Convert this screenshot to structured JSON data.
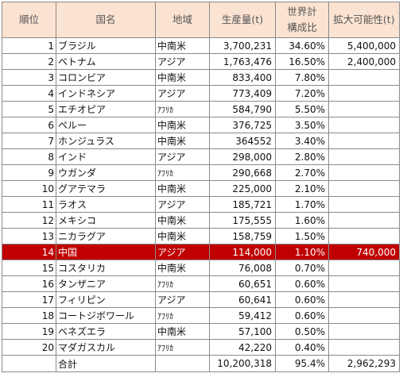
{
  "headers": {
    "rank": "順位",
    "country": "国名",
    "region": "地域",
    "production": "生産量(t)",
    "share_line1": "世界計",
    "share_line2": "構成比",
    "potential": "拡大可能性(t)"
  },
  "rows": [
    {
      "rank": "1",
      "country": "ブラジル",
      "region": "中南米",
      "production": "3,700,231",
      "share": "34.60%",
      "potential": "5,400,000"
    },
    {
      "rank": "2",
      "country": "ベトナム",
      "region": "アジア",
      "production": "1,763,476",
      "share": "16.50%",
      "potential": "2,400,000"
    },
    {
      "rank": "3",
      "country": "コロンビア",
      "region": "中南米",
      "production": "833,400",
      "share": "7.80%",
      "potential": ""
    },
    {
      "rank": "4",
      "country": "インドネシア",
      "region": "アジア",
      "production": "773,409",
      "share": "7.20%",
      "potential": ""
    },
    {
      "rank": "5",
      "country": "エチオピア",
      "region": "ｱﾌﾘｶ",
      "production": "584,790",
      "share": "5.50%",
      "potential": ""
    },
    {
      "rank": "6",
      "country": "ペルー",
      "region": "中南米",
      "production": "376,725",
      "share": "3.50%",
      "potential": ""
    },
    {
      "rank": "7",
      "country": "ホンジュラス",
      "region": "中南米",
      "production": "364552",
      "share": "3.40%",
      "potential": ""
    },
    {
      "rank": "8",
      "country": "インド",
      "region": "アジア",
      "production": "298,000",
      "share": "2.80%",
      "potential": ""
    },
    {
      "rank": "9",
      "country": "ウガンダ",
      "region": "ｱﾌﾘｶ",
      "production": "290,668",
      "share": "2.70%",
      "potential": ""
    },
    {
      "rank": "10",
      "country": "グアテマラ",
      "region": "中南米",
      "production": "225,000",
      "share": "2.10%",
      "potential": ""
    },
    {
      "rank": "11",
      "country": "ラオス",
      "region": "アジア",
      "production": "185,721",
      "share": "1.70%",
      "potential": ""
    },
    {
      "rank": "12",
      "country": "メキシコ",
      "region": "中南米",
      "production": "175,555",
      "share": "1.60%",
      "potential": ""
    },
    {
      "rank": "13",
      "country": "ニカラグア",
      "region": "中南米",
      "production": "158,759",
      "share": "1.50%",
      "potential": ""
    },
    {
      "rank": "14",
      "country": "中国",
      "region": "アジア",
      "production": "114,000",
      "share": "1.10%",
      "potential": "740,000",
      "highlight": true
    },
    {
      "rank": "15",
      "country": "コスタリカ",
      "region": "中南米",
      "production": "76,008",
      "share": "0.70%",
      "potential": ""
    },
    {
      "rank": "16",
      "country": "タンザニア",
      "region": "ｱﾌﾘｶ",
      "production": "60,651",
      "share": "0.60%",
      "potential": ""
    },
    {
      "rank": "17",
      "country": "フィリピン",
      "region": "アジア",
      "production": "60,641",
      "share": "0.60%",
      "potential": ""
    },
    {
      "rank": "18",
      "country": "コートジボワール",
      "region": "ｱﾌﾘｶ",
      "production": "59,412",
      "share": "0.60%",
      "potential": ""
    },
    {
      "rank": "19",
      "country": "ベネズエラ",
      "region": "中南米",
      "production": "57,100",
      "share": "0.50%",
      "potential": ""
    },
    {
      "rank": "20",
      "country": "マダガスカル",
      "region": "ｱﾌﾘｶ",
      "production": "42,220",
      "share": "0.40%",
      "potential": ""
    }
  ],
  "total": {
    "label": "合計",
    "production": "10,200,318",
    "share": "95.4%",
    "potential": "2,962,293"
  },
  "colors": {
    "header_bg": "#fbe3d2",
    "highlight_bg": "#c00000",
    "highlight_text": "#ffffff"
  }
}
